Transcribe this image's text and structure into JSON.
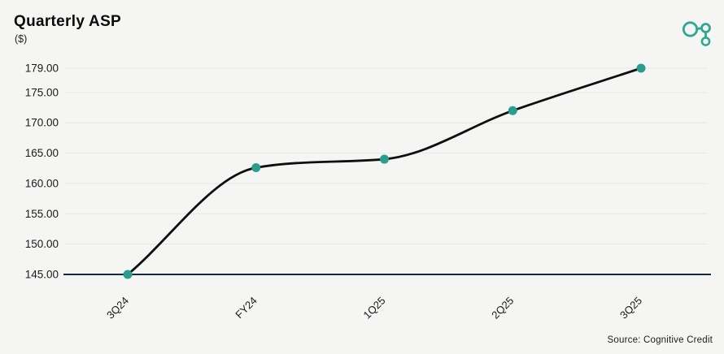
{
  "header": {
    "logo_icon": "cognitive-credit-molecule-logo"
  },
  "chart_data": {
    "type": "line",
    "title": "Quarterly ASP",
    "subtitle": "($)",
    "categories": [
      "3Q24",
      "FY24",
      "1Q25",
      "2Q25",
      "3Q25"
    ],
    "values": [
      145.0,
      162.6,
      164.0,
      172.0,
      179.0
    ],
    "ylim": [
      145,
      179
    ],
    "yticks": [
      145,
      150,
      155,
      160,
      165,
      170,
      175,
      179
    ],
    "ytick_decimals": 2,
    "xlabel": "",
    "ylabel": "($)",
    "grid": "horizontal",
    "legend": "none",
    "x_label_rotation": -45,
    "curve": "monotone",
    "source": "Source: Cognitive Credit",
    "colors": {
      "background": "#f5f5f4",
      "line": "#0f0f0f",
      "marker": "#2a9d8e",
      "grid": "#e7e7e7",
      "axis": "#17293a",
      "text": "#1a1a1a",
      "logo": "#2fa892"
    }
  }
}
